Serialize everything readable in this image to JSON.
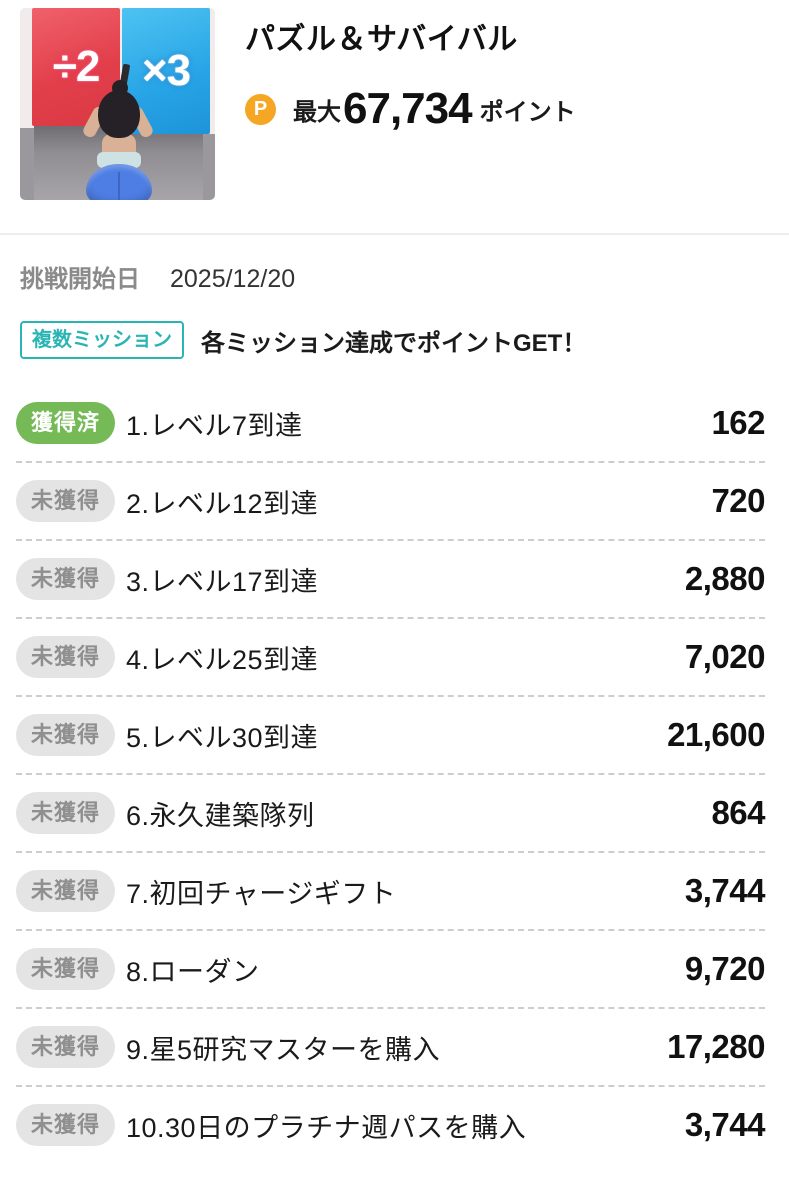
{
  "header": {
    "app_title": "パズル＆サバイバル",
    "coin_letter": "P",
    "points_prefix": "最大",
    "points_value": "67,734",
    "points_suffix": "ポイント",
    "thumb_left_label": "÷2",
    "thumb_right_label": "×3"
  },
  "info": {
    "start_date_label": "挑戦開始日",
    "start_date": "2025/12/20",
    "mission_type_badge": "複数ミッション",
    "description": "各ミッション達成でポイントGET！"
  },
  "missions": [
    {
      "status": "獲得済",
      "acquired": true,
      "label": "1.レベル7到達",
      "points": "162"
    },
    {
      "status": "未獲得",
      "acquired": false,
      "label": "2.レベル12到達",
      "points": "720"
    },
    {
      "status": "未獲得",
      "acquired": false,
      "label": "3.レベル17到達",
      "points": "2,880"
    },
    {
      "status": "未獲得",
      "acquired": false,
      "label": "4.レベル25到達",
      "points": "7,020"
    },
    {
      "status": "未獲得",
      "acquired": false,
      "label": "5.レベル30到達",
      "points": "21,600"
    },
    {
      "status": "未獲得",
      "acquired": false,
      "label": "6.永久建築隊列",
      "points": "864"
    },
    {
      "status": "未獲得",
      "acquired": false,
      "label": "7.初回チャージギフト",
      "points": "3,744"
    },
    {
      "status": "未獲得",
      "acquired": false,
      "label": "8.ローダン",
      "points": "9,720"
    },
    {
      "status": "未獲得",
      "acquired": false,
      "label": "9.星5研究マスターを購入",
      "points": "17,280"
    },
    {
      "status": "未獲得",
      "acquired": false,
      "label": "10.30日のプラチナ週パスを購入",
      "points": "3,744"
    }
  ],
  "colors": {
    "accent_teal": "#2ab5b5",
    "coin_orange": "#f5a623",
    "acquired_green": "#76ba58",
    "pending_gray_bg": "#e4e4e4",
    "pending_gray_text": "#8f8f8f"
  }
}
